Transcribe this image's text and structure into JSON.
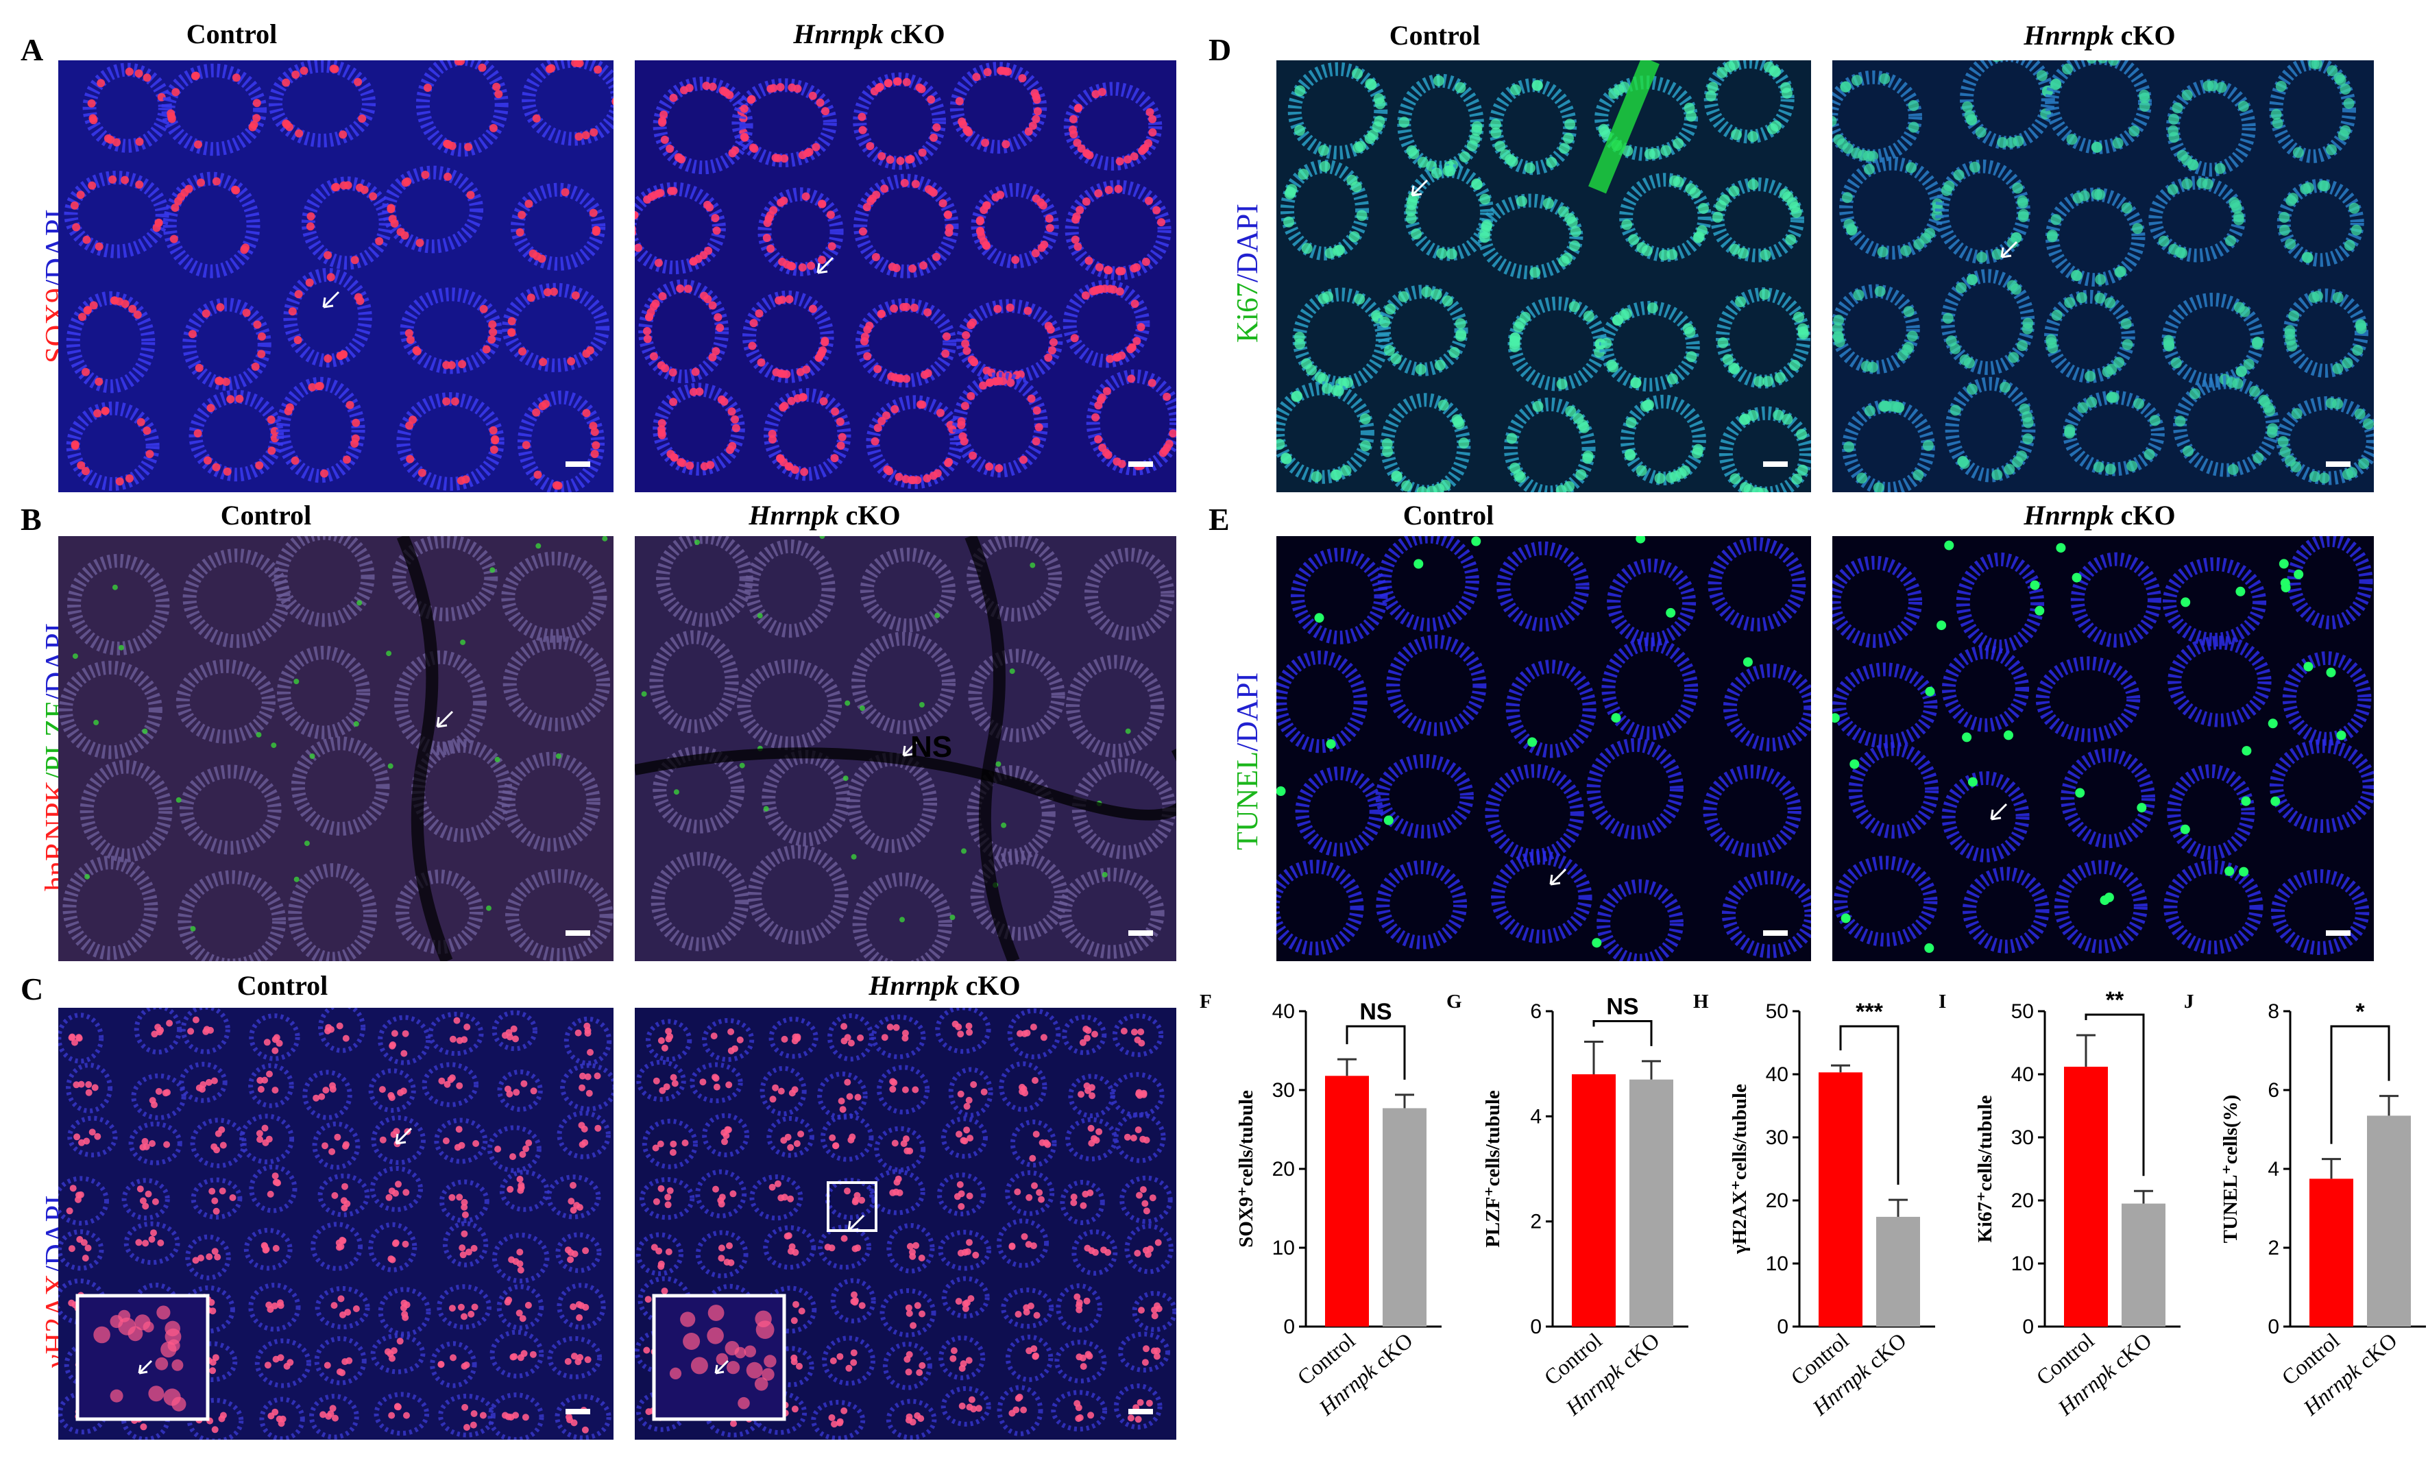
{
  "panels": {
    "A": {
      "letter": "A",
      "stain_a": "SOX9",
      "stain_sep": "/",
      "stain_b": "DAPI",
      "control": "Control",
      "ko_gene": "Hnrnpk",
      "ko_suffix": " cKO"
    },
    "B": {
      "letter": "B",
      "stain_a": "hnRNPK",
      "stain_sep1": "/",
      "stain_b": "PLZF",
      "stain_sep2": "/",
      "stain_c": "DAPI",
      "control": "Control",
      "ko_gene": "Hnrnpk",
      "ko_suffix": " cKO",
      "ns_mark": "NS"
    },
    "C": {
      "letter": "C",
      "stain_a": "γH2AX",
      "stain_sep": "/",
      "stain_b": "DAPI",
      "control": "Control",
      "ko_gene": "Hnrnpk",
      "ko_suffix": " cKO"
    },
    "D": {
      "letter": "D",
      "stain_a": "Ki67",
      "stain_sep": "/",
      "stain_b": "DAPI",
      "control": "Control",
      "ko_gene": "Hnrnpk",
      "ko_suffix": " cKO"
    },
    "E": {
      "letter": "E",
      "stain_a": "TUNEL",
      "stain_sep": "/",
      "stain_b": "DAPI",
      "control": "Control",
      "ko_gene": "Hnrnpk",
      "ko_suffix": " cKO"
    }
  },
  "colors": {
    "red_stain": "#ff2020",
    "green_stain": "#1bb61b",
    "blue_stain": "#2020d0",
    "bar_control": "#ff0000",
    "bar_ko": "#a6a6a6"
  },
  "chart_data": [
    {
      "letter": "F",
      "type": "bar",
      "categories": [
        "Control",
        "Hnrnpk cKO"
      ],
      "values": [
        31.8,
        27.7
      ],
      "errors": [
        2.1,
        1.7
      ],
      "ylabel": "SOX9⁺cells/tubule",
      "ylim": [
        0,
        40
      ],
      "yticks": [
        0,
        10,
        20,
        30,
        40
      ],
      "significance": "NS"
    },
    {
      "letter": "G",
      "type": "bar",
      "categories": [
        "Control",
        "Hnrnpk cKO"
      ],
      "values": [
        4.8,
        4.7
      ],
      "errors": [
        0.62,
        0.35
      ],
      "ylabel": "PLZF⁺cells/tubule",
      "ylim": [
        0,
        6
      ],
      "yticks": [
        0,
        2,
        4,
        6
      ],
      "significance": "NS"
    },
    {
      "letter": "H",
      "type": "bar",
      "categories": [
        "Control",
        "Hnrnpk cKO"
      ],
      "values": [
        40.3,
        17.4
      ],
      "errors": [
        1.1,
        2.7
      ],
      "ylabel": "γH2AX⁺cells/tubule",
      "ylim": [
        0,
        50
      ],
      "yticks": [
        0,
        10,
        20,
        30,
        40,
        50
      ],
      "significance": "***"
    },
    {
      "letter": "I",
      "type": "bar",
      "categories": [
        "Control",
        "Hnrnpk cKO"
      ],
      "values": [
        41.2,
        19.5
      ],
      "errors": [
        5.0,
        2.0
      ],
      "ylabel": "Ki67⁺cells/tubule",
      "ylim": [
        0,
        50
      ],
      "yticks": [
        0,
        10,
        20,
        30,
        40,
        50
      ],
      "significance": "**"
    },
    {
      "letter": "J",
      "type": "bar",
      "categories": [
        "Control",
        "Hnrnpk cKO"
      ],
      "values": [
        3.75,
        5.35
      ],
      "errors": [
        0.5,
        0.5
      ],
      "ylabel": "TUNEL⁺cells(%)",
      "ylim": [
        0,
        8
      ],
      "yticks": [
        0,
        2,
        4,
        6,
        8
      ],
      "significance": "*"
    }
  ]
}
